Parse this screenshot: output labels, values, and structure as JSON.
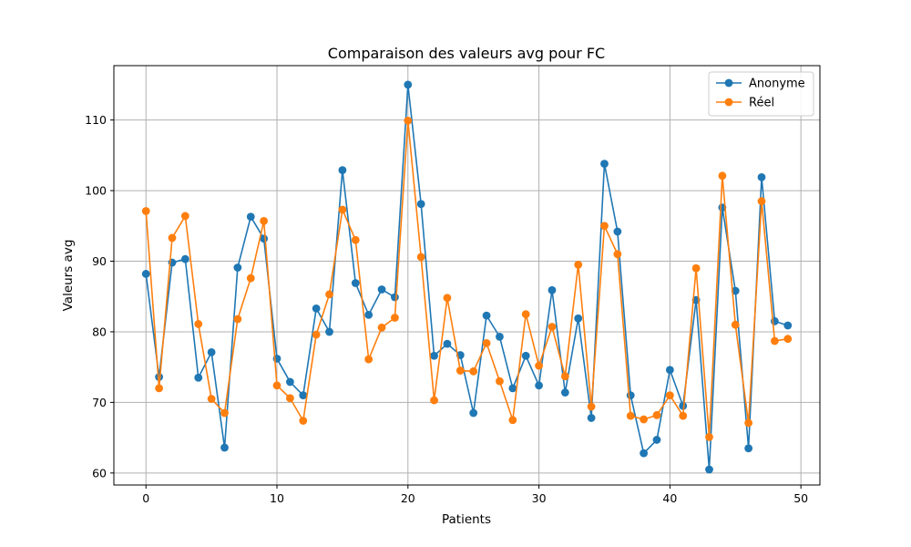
{
  "chart_data": {
    "type": "line",
    "title": "Comparaison des valeurs avg pour FC",
    "xlabel": "Patients",
    "ylabel": "Valeurs avg",
    "xlim": [
      -2.45,
      51.45
    ],
    "ylim": [
      58.3,
      117.7
    ],
    "xticks": [
      0,
      10,
      20,
      30,
      40,
      50
    ],
    "yticks": [
      60,
      70,
      80,
      90,
      100,
      110
    ],
    "grid": true,
    "legend_position": "top-right",
    "x": [
      0,
      1,
      2,
      3,
      4,
      5,
      6,
      7,
      8,
      9,
      10,
      11,
      12,
      13,
      14,
      15,
      16,
      17,
      18,
      19,
      20,
      21,
      22,
      23,
      24,
      25,
      26,
      27,
      28,
      29,
      30,
      31,
      32,
      33,
      34,
      35,
      36,
      37,
      38,
      39,
      40,
      41,
      42,
      43,
      44,
      45,
      46,
      47,
      48,
      49
    ],
    "series": [
      {
        "name": "Anonyme",
        "color": "#1f77b4",
        "values": [
          88.2,
          73.6,
          89.8,
          90.3,
          73.5,
          77.1,
          63.6,
          89.1,
          96.3,
          93.2,
          76.2,
          72.9,
          71.0,
          83.3,
          80.0,
          102.9,
          86.9,
          82.4,
          86.0,
          84.9,
          115.0,
          98.1,
          76.6,
          78.3,
          76.7,
          68.5,
          82.3,
          79.3,
          72.0,
          76.6,
          72.4,
          85.9,
          71.4,
          81.9,
          67.8,
          103.8,
          94.2,
          71.0,
          62.8,
          64.7,
          74.6,
          69.5,
          84.5,
          60.5,
          97.6,
          85.8,
          63.5,
          101.9,
          81.5,
          80.9
        ]
      },
      {
        "name": "Réel",
        "color": "#ff7f0e",
        "values": [
          97.1,
          72.0,
          93.3,
          96.4,
          81.1,
          70.5,
          68.5,
          81.8,
          87.6,
          95.7,
          72.4,
          70.6,
          67.4,
          79.6,
          85.3,
          97.3,
          93.0,
          76.1,
          80.6,
          82.0,
          109.9,
          90.6,
          70.3,
          84.8,
          74.5,
          74.4,
          78.4,
          73.0,
          67.5,
          82.5,
          75.2,
          80.7,
          73.7,
          89.5,
          69.4,
          95.0,
          91.0,
          68.1,
          67.6,
          68.2,
          71.0,
          68.1,
          89.0,
          65.1,
          102.1,
          81.0,
          67.1,
          98.5,
          78.7,
          79.0
        ]
      }
    ]
  }
}
